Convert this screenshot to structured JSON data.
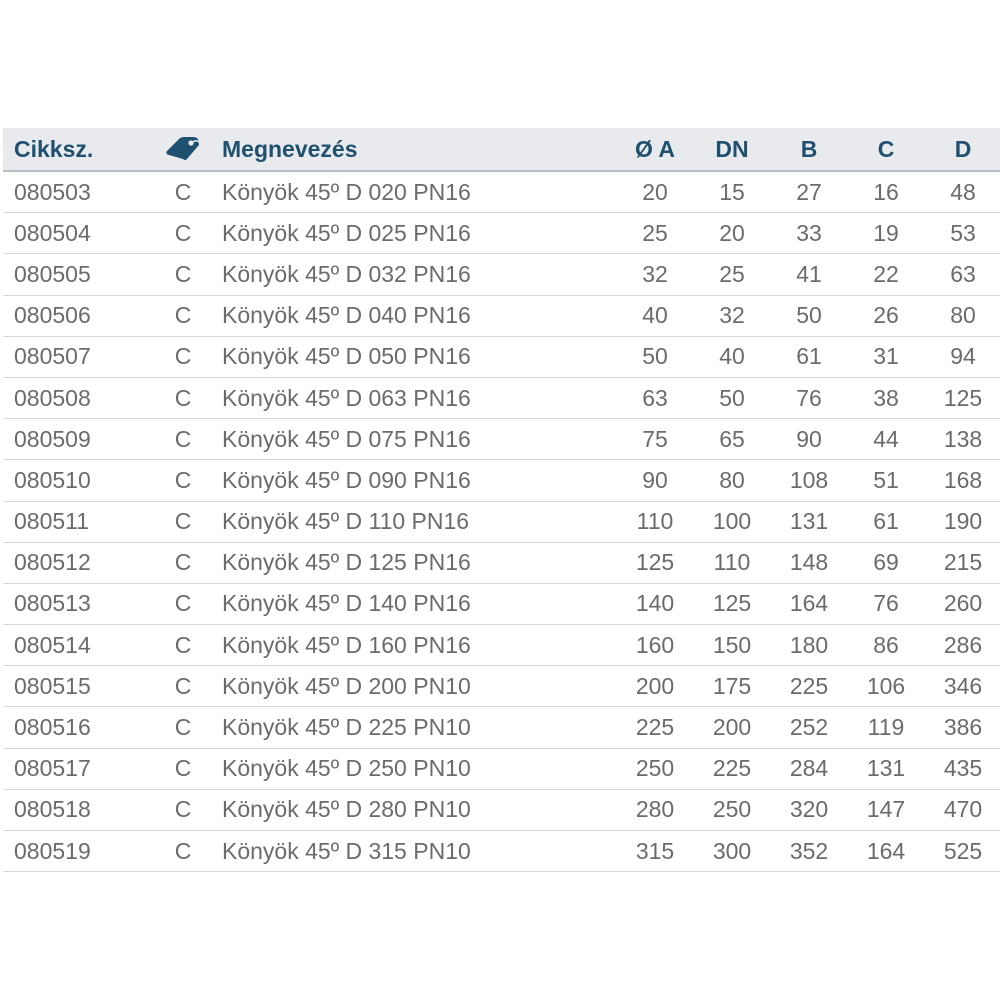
{
  "header": {
    "code": "Cikksz.",
    "tag_icon": "tag-icon",
    "name": "Megnevezés",
    "a": "Ø A",
    "dn": "DN",
    "b": "B",
    "c": "C",
    "d": "D"
  },
  "colors": {
    "header_text": "#1f5070",
    "header_bg": "#e9eaed",
    "body_text": "#6b6b6b"
  },
  "rows": [
    [
      "080503",
      "C",
      "Könyök 45º D 020 PN16",
      "20",
      "15",
      "27",
      "16",
      "48"
    ],
    [
      "080504",
      "C",
      "Könyök 45º D 025 PN16",
      "25",
      "20",
      "33",
      "19",
      "53"
    ],
    [
      "080505",
      "C",
      "Könyök 45º D 032 PN16",
      "32",
      "25",
      "41",
      "22",
      "63"
    ],
    [
      "080506",
      "C",
      "Könyök 45º D 040 PN16",
      "40",
      "32",
      "50",
      "26",
      "80"
    ],
    [
      "080507",
      "C",
      "Könyök 45º D 050 PN16",
      "50",
      "40",
      "61",
      "31",
      "94"
    ],
    [
      "080508",
      "C",
      "Könyök 45º D 063 PN16",
      "63",
      "50",
      "76",
      "38",
      "125"
    ],
    [
      "080509",
      "C",
      "Könyök 45º D 075 PN16",
      "75",
      "65",
      "90",
      "44",
      "138"
    ],
    [
      "080510",
      "C",
      "Könyök 45º D 090 PN16",
      "90",
      "80",
      "108",
      "51",
      "168"
    ],
    [
      "080511",
      "C",
      "Könyök 45º D 110 PN16",
      "110",
      "100",
      "131",
      "61",
      "190"
    ],
    [
      "080512",
      "C",
      "Könyök 45º D 125 PN16",
      "125",
      "110",
      "148",
      "69",
      "215"
    ],
    [
      "080513",
      "C",
      "Könyök 45º D 140 PN16",
      "140",
      "125",
      "164",
      "76",
      "260"
    ],
    [
      "080514",
      "C",
      "Könyök 45º D 160 PN16",
      "160",
      "150",
      "180",
      "86",
      "286"
    ],
    [
      "080515",
      "C",
      "Könyök 45º D 200 PN10",
      "200",
      "175",
      "225",
      "106",
      "346"
    ],
    [
      "080516",
      "C",
      "Könyök 45º D 225 PN10",
      "225",
      "200",
      "252",
      "119",
      "386"
    ],
    [
      "080517",
      "C",
      "Könyök 45º D 250 PN10",
      "250",
      "225",
      "284",
      "131",
      "435"
    ],
    [
      "080518",
      "C",
      "Könyök 45º D 280 PN10",
      "280",
      "250",
      "320",
      "147",
      "470"
    ],
    [
      "080519",
      "C",
      "Könyök 45º D 315 PN10",
      "315",
      "300",
      "352",
      "164",
      "525"
    ]
  ]
}
